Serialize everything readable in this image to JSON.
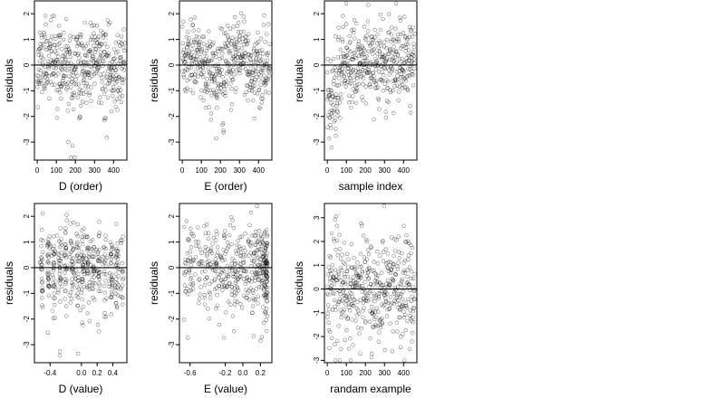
{
  "chart_data": [
    {
      "type": "scatter",
      "xlabel": "D (order)",
      "ylabel": "residuals",
      "xlim": [
        -15,
        470
      ],
      "ylim": [
        -3.7,
        2.5
      ],
      "xticks": [
        0,
        100,
        200,
        300,
        400
      ],
      "yticks": [
        -3,
        -2,
        -1,
        0,
        1,
        2
      ],
      "reference_line": 0,
      "grid": false,
      "marker": "open circle",
      "x_kind": "index",
      "y_pattern": "drift",
      "n_points": 460,
      "seed": 11
    },
    {
      "type": "scatter",
      "xlabel": "E (order)",
      "ylabel": "residuals",
      "xlim": [
        -15,
        470
      ],
      "ylim": [
        -3.7,
        2.5
      ],
      "xticks": [
        0,
        100,
        200,
        300,
        400
      ],
      "yticks": [
        -3,
        -2,
        -1,
        0,
        1,
        2
      ],
      "reference_line": 0,
      "grid": false,
      "marker": "open circle",
      "x_kind": "index",
      "y_pattern": "drift",
      "n_points": 460,
      "seed": 23
    },
    {
      "type": "scatter",
      "xlabel": "sample index",
      "ylabel": "residuals",
      "xlim": [
        -15,
        470
      ],
      "ylim": [
        -3.7,
        2.5
      ],
      "xticks": [
        0,
        100,
        200,
        300,
        400
      ],
      "yticks": [
        -3,
        -2,
        -1,
        0,
        1,
        2
      ],
      "reference_line": 0,
      "grid": false,
      "marker": "open circle",
      "x_kind": "index",
      "y_pattern": "early_low",
      "n_points": 460,
      "seed": 37
    },
    {
      "type": "scatter",
      "xlabel": "D (value)",
      "ylabel": "residuals",
      "xlim": [
        -0.6,
        0.58
      ],
      "ylim": [
        -3.7,
        2.5
      ],
      "xticks": [
        -0.4,
        0.0,
        0.2,
        0.4
      ],
      "xtick_labels": [
        "-0.4",
        "0.0",
        "0.2",
        "0.4"
      ],
      "yticks": [
        -3,
        -2,
        -1,
        0,
        1,
        2
      ],
      "reference_line": 0,
      "grid": false,
      "marker": "open circle",
      "x_kind": "d_value",
      "y_pattern": "noise",
      "n_points": 460,
      "seed": 41
    },
    {
      "type": "scatter",
      "xlabel": "E (value)",
      "ylabel": "residuals",
      "xlim": [
        -0.72,
        0.33
      ],
      "ylim": [
        -3.7,
        2.5
      ],
      "xticks": [
        -0.6,
        -0.2,
        0.0,
        0.2
      ],
      "xtick_labels": [
        "-0.6",
        "-0.2",
        "0.0",
        "0.2"
      ],
      "yticks": [
        -3,
        -2,
        -1,
        0,
        1,
        2
      ],
      "reference_line": 0,
      "grid": false,
      "marker": "open circle",
      "x_kind": "e_value",
      "y_pattern": "noise",
      "n_points": 460,
      "seed": 53
    },
    {
      "type": "scatter",
      "xlabel": "randam example",
      "ylabel": "residuals",
      "xlim": [
        -15,
        470
      ],
      "ylim": [
        -3.1,
        3.6
      ],
      "xticks": [
        0,
        100,
        200,
        300,
        400
      ],
      "yticks": [
        -3,
        -2,
        -1,
        0,
        1,
        2,
        3
      ],
      "reference_line": 0,
      "grid": false,
      "marker": "open circle",
      "x_kind": "index",
      "y_pattern": "wide_noise",
      "n_points": 460,
      "seed": 67
    }
  ]
}
